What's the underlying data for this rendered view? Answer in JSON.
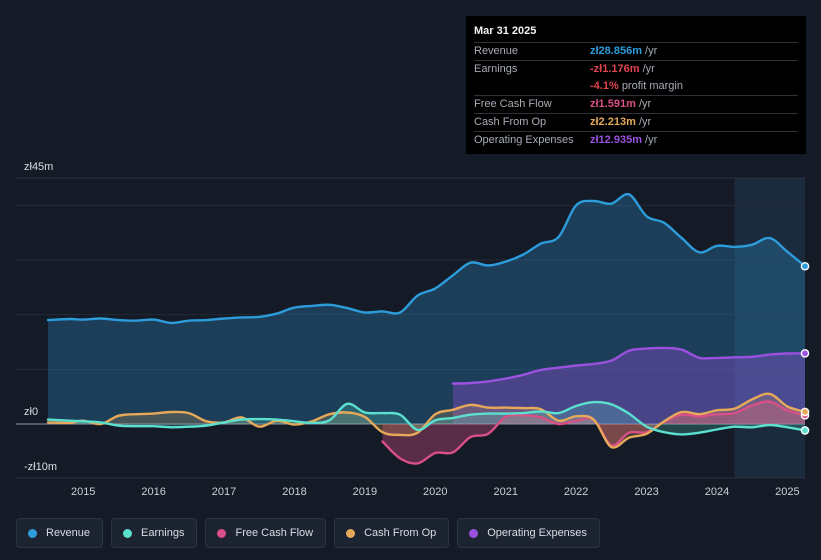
{
  "tooltip": {
    "date": "Mar 31 2025",
    "rows": [
      {
        "key": "Revenue",
        "value": "zł28.856m",
        "unit": "/yr",
        "color": "#2d9cdb"
      },
      {
        "key": "Earnings",
        "value": "-zł1.176m",
        "unit": "/yr",
        "color": "#e0454f"
      },
      {
        "key": "",
        "value": "-4.1%",
        "unit": "profit margin",
        "color": "#e0454f"
      },
      {
        "key": "Free Cash Flow",
        "value": "zł1.591m",
        "unit": "/yr",
        "color": "#d94f86"
      },
      {
        "key": "Cash From Op",
        "value": "zł2.213m",
        "unit": "/yr",
        "color": "#e6a95a"
      },
      {
        "key": "Operating Expenses",
        "value": "zł12.935m",
        "unit": "/yr",
        "color": "#9b51e0"
      }
    ]
  },
  "chart_data": {
    "type": "area",
    "y_axis_labels": {
      "top": "zł45m",
      "zero": "zł0",
      "bottom": "-zł10m"
    },
    "ylim": [
      -10,
      45
    ],
    "xlim": [
      2014.4,
      2025.25
    ],
    "x_ticks": [
      "2015",
      "2016",
      "2017",
      "2018",
      "2019",
      "2020",
      "2021",
      "2022",
      "2023",
      "2024",
      "2025"
    ],
    "forecast_shade_from": 2024.25,
    "series": [
      {
        "name": "Revenue",
        "color": "#2d9cdb",
        "points": [
          [
            2014.5,
            19
          ],
          [
            2014.8,
            19.2
          ],
          [
            2015.0,
            19.1
          ],
          [
            2015.25,
            19.3
          ],
          [
            2015.5,
            19.0
          ],
          [
            2015.75,
            18.9
          ],
          [
            2016.0,
            19.1
          ],
          [
            2016.25,
            18.5
          ],
          [
            2016.5,
            18.9
          ],
          [
            2016.75,
            19.0
          ],
          [
            2017.0,
            19.3
          ],
          [
            2017.25,
            19.5
          ],
          [
            2017.5,
            19.6
          ],
          [
            2017.75,
            20.2
          ],
          [
            2018.0,
            21.3
          ],
          [
            2018.25,
            21.6
          ],
          [
            2018.5,
            21.8
          ],
          [
            2018.75,
            21.2
          ],
          [
            2019.0,
            20.4
          ],
          [
            2019.25,
            20.6
          ],
          [
            2019.5,
            20.4
          ],
          [
            2019.75,
            23.5
          ],
          [
            2020.0,
            24.8
          ],
          [
            2020.25,
            27.2
          ],
          [
            2020.5,
            29.5
          ],
          [
            2020.75,
            29.0
          ],
          [
            2021.0,
            29.7
          ],
          [
            2021.25,
            31.0
          ],
          [
            2021.5,
            33.0
          ],
          [
            2021.75,
            34.2
          ],
          [
            2022.0,
            40.0
          ],
          [
            2022.25,
            40.8
          ],
          [
            2022.5,
            40.3
          ],
          [
            2022.75,
            42.0
          ],
          [
            2023.0,
            38.0
          ],
          [
            2023.25,
            36.8
          ],
          [
            2023.5,
            34.0
          ],
          [
            2023.75,
            31.4
          ],
          [
            2024.0,
            32.6
          ],
          [
            2024.25,
            32.4
          ],
          [
            2024.5,
            32.8
          ],
          [
            2024.75,
            34.0
          ],
          [
            2025.0,
            31.5
          ],
          [
            2025.25,
            28.856
          ]
        ]
      },
      {
        "name": "Operating Expenses",
        "color": "#9b51e0",
        "points": [
          [
            2020.25,
            7.4
          ],
          [
            2020.5,
            7.5
          ],
          [
            2020.75,
            7.8
          ],
          [
            2021.0,
            8.3
          ],
          [
            2021.25,
            9.0
          ],
          [
            2021.5,
            9.9
          ],
          [
            2021.75,
            10.3
          ],
          [
            2022.0,
            10.7
          ],
          [
            2022.25,
            11.0
          ],
          [
            2022.5,
            11.6
          ],
          [
            2022.75,
            13.4
          ],
          [
            2023.0,
            13.8
          ],
          [
            2023.25,
            13.9
          ],
          [
            2023.5,
            13.6
          ],
          [
            2023.75,
            12.1
          ],
          [
            2024.0,
            12.1
          ],
          [
            2024.25,
            12.2
          ],
          [
            2024.5,
            12.3
          ],
          [
            2024.75,
            12.7
          ],
          [
            2025.0,
            12.9
          ],
          [
            2025.25,
            12.935
          ]
        ]
      },
      {
        "name": "Free Cash Flow",
        "color": "#d94f86",
        "points": [
          [
            2019.25,
            -3.2
          ],
          [
            2019.5,
            -6.3
          ],
          [
            2019.75,
            -7.2
          ],
          [
            2020.0,
            -5.3
          ],
          [
            2020.25,
            -5.2
          ],
          [
            2020.5,
            -2.4
          ],
          [
            2020.75,
            -1.8
          ],
          [
            2021.0,
            1.3
          ],
          [
            2021.25,
            1.6
          ],
          [
            2021.5,
            1.2
          ],
          [
            2021.75,
            0.0
          ],
          [
            2022.0,
            0.6
          ],
          [
            2022.25,
            0.8
          ],
          [
            2022.5,
            -3.9
          ],
          [
            2022.75,
            -1.6
          ],
          [
            2023.0,
            -1.5
          ],
          [
            2023.25,
            0.4
          ],
          [
            2023.5,
            1.7
          ],
          [
            2023.75,
            1.4
          ],
          [
            2024.0,
            1.8
          ],
          [
            2024.25,
            2.0
          ],
          [
            2024.5,
            3.4
          ],
          [
            2024.75,
            4.1
          ],
          [
            2025.0,
            2.5
          ],
          [
            2025.25,
            1.591
          ]
        ]
      },
      {
        "name": "Cash From Op",
        "color": "#e6a95a",
        "points": [
          [
            2014.5,
            0.3
          ],
          [
            2014.8,
            0.2
          ],
          [
            2015.0,
            0.6
          ],
          [
            2015.25,
            0.0
          ],
          [
            2015.5,
            1.5
          ],
          [
            2015.75,
            1.8
          ],
          [
            2016.0,
            1.9
          ],
          [
            2016.25,
            2.2
          ],
          [
            2016.5,
            2.0
          ],
          [
            2016.75,
            0.5
          ],
          [
            2017.0,
            0.3
          ],
          [
            2017.25,
            1.2
          ],
          [
            2017.5,
            -0.5
          ],
          [
            2017.75,
            0.6
          ],
          [
            2018.0,
            -0.1
          ],
          [
            2018.25,
            0.5
          ],
          [
            2018.5,
            1.8
          ],
          [
            2018.75,
            2.1
          ],
          [
            2019.0,
            1.3
          ],
          [
            2019.25,
            -1.5
          ],
          [
            2019.5,
            -2.0
          ],
          [
            2019.75,
            -1.6
          ],
          [
            2020.0,
            1.8
          ],
          [
            2020.25,
            2.6
          ],
          [
            2020.5,
            3.5
          ],
          [
            2020.75,
            3.0
          ],
          [
            2021.0,
            3.0
          ],
          [
            2021.25,
            2.9
          ],
          [
            2021.5,
            2.7
          ],
          [
            2021.75,
            0.6
          ],
          [
            2022.0,
            1.4
          ],
          [
            2022.25,
            0.8
          ],
          [
            2022.5,
            -4.2
          ],
          [
            2022.75,
            -2.5
          ],
          [
            2023.0,
            -1.8
          ],
          [
            2023.25,
            0.5
          ],
          [
            2023.5,
            2.2
          ],
          [
            2023.75,
            1.8
          ],
          [
            2024.0,
            2.5
          ],
          [
            2024.25,
            2.8
          ],
          [
            2024.5,
            4.5
          ],
          [
            2024.75,
            5.5
          ],
          [
            2025.0,
            3.2
          ],
          [
            2025.25,
            2.213
          ]
        ]
      },
      {
        "name": "Earnings",
        "color": "#5be0cf",
        "points": [
          [
            2014.5,
            0.8
          ],
          [
            2014.8,
            0.6
          ],
          [
            2015.0,
            0.5
          ],
          [
            2015.25,
            0.3
          ],
          [
            2015.5,
            -0.3
          ],
          [
            2015.75,
            -0.4
          ],
          [
            2016.0,
            -0.4
          ],
          [
            2016.25,
            -0.6
          ],
          [
            2016.5,
            -0.5
          ],
          [
            2016.75,
            -0.3
          ],
          [
            2017.0,
            0.3
          ],
          [
            2017.25,
            0.8
          ],
          [
            2017.5,
            0.9
          ],
          [
            2017.75,
            0.8
          ],
          [
            2018.0,
            0.5
          ],
          [
            2018.25,
            0.2
          ],
          [
            2018.5,
            0.7
          ],
          [
            2018.75,
            3.7
          ],
          [
            2019.0,
            2.1
          ],
          [
            2019.25,
            2.0
          ],
          [
            2019.5,
            1.7
          ],
          [
            2019.75,
            -1.1
          ],
          [
            2020.0,
            0.7
          ],
          [
            2020.25,
            1.1
          ],
          [
            2020.5,
            1.7
          ],
          [
            2020.75,
            1.9
          ],
          [
            2021.0,
            1.9
          ],
          [
            2021.25,
            2.0
          ],
          [
            2021.5,
            2.3
          ],
          [
            2021.75,
            2.0
          ],
          [
            2022.0,
            3.3
          ],
          [
            2022.25,
            4.0
          ],
          [
            2022.5,
            3.6
          ],
          [
            2022.75,
            1.9
          ],
          [
            2023.0,
            -0.5
          ],
          [
            2023.25,
            -1.5
          ],
          [
            2023.5,
            -1.9
          ],
          [
            2023.75,
            -1.6
          ],
          [
            2024.0,
            -1.0
          ],
          [
            2024.25,
            -0.5
          ],
          [
            2024.5,
            -0.6
          ],
          [
            2024.75,
            -0.2
          ],
          [
            2025.0,
            -0.6
          ],
          [
            2025.25,
            -1.176
          ]
        ]
      }
    ]
  },
  "legend": [
    {
      "label": "Revenue",
      "color": "#2d9cdb"
    },
    {
      "label": "Earnings",
      "color": "#5be0cf"
    },
    {
      "label": "Free Cash Flow",
      "color": "#d94f86"
    },
    {
      "label": "Cash From Op",
      "color": "#e6a95a"
    },
    {
      "label": "Operating Expenses",
      "color": "#9b51e0"
    }
  ]
}
